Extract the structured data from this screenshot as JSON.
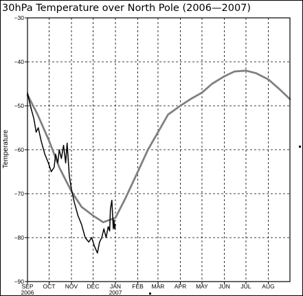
{
  "chart_data": {
    "type": "line",
    "title": "30hPa Temperature over North Pole (2006—2007)",
    "xlabel": "",
    "ylabel": "Temperature",
    "ylim": [
      -90,
      -30
    ],
    "yticks": [
      -90,
      -80,
      -70,
      -60,
      -50,
      -40,
      -30
    ],
    "ytick_labels": [
      "−90",
      "−80",
      "−70",
      "−60",
      "−50",
      "−40",
      "−30"
    ],
    "xlim": [
      "2006-09-01",
      "2007-08-31"
    ],
    "x_ticks": [
      {
        "date": "2006-09-01",
        "label": "SEP",
        "sublabel": "2006"
      },
      {
        "date": "2006-10-01",
        "label": "OCT",
        "sublabel": ""
      },
      {
        "date": "2006-11-01",
        "label": "NOV",
        "sublabel": ""
      },
      {
        "date": "2006-12-01",
        "label": "DEC",
        "sublabel": ""
      },
      {
        "date": "2007-01-01",
        "label": "JAN",
        "sublabel": "2007"
      },
      {
        "date": "2007-02-01",
        "label": "FEB",
        "sublabel": ""
      },
      {
        "date": "2007-03-01",
        "label": "MAR",
        "sublabel": ""
      },
      {
        "date": "2007-04-01",
        "label": "APR",
        "sublabel": ""
      },
      {
        "date": "2007-05-01",
        "label": "MAY",
        "sublabel": ""
      },
      {
        "date": "2007-06-01",
        "label": "JUN",
        "sublabel": ""
      },
      {
        "date": "2007-07-01",
        "label": "JUL",
        "sublabel": ""
      },
      {
        "date": "2007-08-01",
        "label": "AUG",
        "sublabel": ""
      }
    ],
    "grid": true,
    "series": [
      {
        "color": "#808080",
        "x": [
          "2006-09-01",
          "2006-09-15",
          "2006-10-01",
          "2006-10-15",
          "2006-11-01",
          "2006-11-15",
          "2006-12-01",
          "2006-12-15",
          "2007-01-01",
          "2007-01-15",
          "2007-02-01",
          "2007-02-15",
          "2007-03-01",
          "2007-03-15",
          "2007-04-01",
          "2007-04-15",
          "2007-05-01",
          "2007-05-15",
          "2007-06-01",
          "2007-06-15",
          "2007-07-01",
          "2007-07-15",
          "2007-08-01",
          "2007-08-15",
          "2007-08-31"
        ],
        "values": [
          -47.5,
          -52,
          -58,
          -64,
          -69.5,
          -73,
          -75,
          -76.5,
          -75.5,
          -71,
          -65,
          -60,
          -56,
          -52,
          -50,
          -48.5,
          -47,
          -45,
          -43.3,
          -42.2,
          -42,
          -42.6,
          -44,
          -46,
          -48.5
        ]
      },
      {
        "color": "#000000",
        "x": [
          "2006-09-01",
          "2006-09-05",
          "2006-09-10",
          "2006-09-13",
          "2006-09-16",
          "2006-09-20",
          "2006-09-25",
          "2006-09-30",
          "2006-10-04",
          "2006-10-08",
          "2006-10-10",
          "2006-10-13",
          "2006-10-15",
          "2006-10-18",
          "2006-10-21",
          "2006-10-24",
          "2006-10-26",
          "2006-10-29",
          "2006-11-01",
          "2006-11-05",
          "2006-11-10",
          "2006-11-15",
          "2006-11-20",
          "2006-11-25",
          "2006-11-29",
          "2006-12-03",
          "2006-12-07",
          "2006-12-10",
          "2006-12-13",
          "2006-12-16",
          "2006-12-19",
          "2006-12-22",
          "2006-12-24",
          "2006-12-25",
          "2006-12-27",
          "2006-12-29",
          "2006-12-30",
          "2006-12-31",
          "2007-01-01"
        ],
        "values": [
          -47,
          -50,
          -53,
          -56,
          -55,
          -58,
          -61,
          -63,
          -65,
          -64,
          -61,
          -63,
          -60,
          -62,
          -59,
          -63,
          -58.5,
          -66,
          -69,
          -72,
          -75,
          -77,
          -80,
          -81,
          -80,
          -82,
          -83.5,
          -81,
          -80,
          -78,
          -80,
          -77.5,
          -78.5,
          -73.5,
          -71.5,
          -78,
          -76,
          -78,
          -77
        ]
      }
    ]
  }
}
